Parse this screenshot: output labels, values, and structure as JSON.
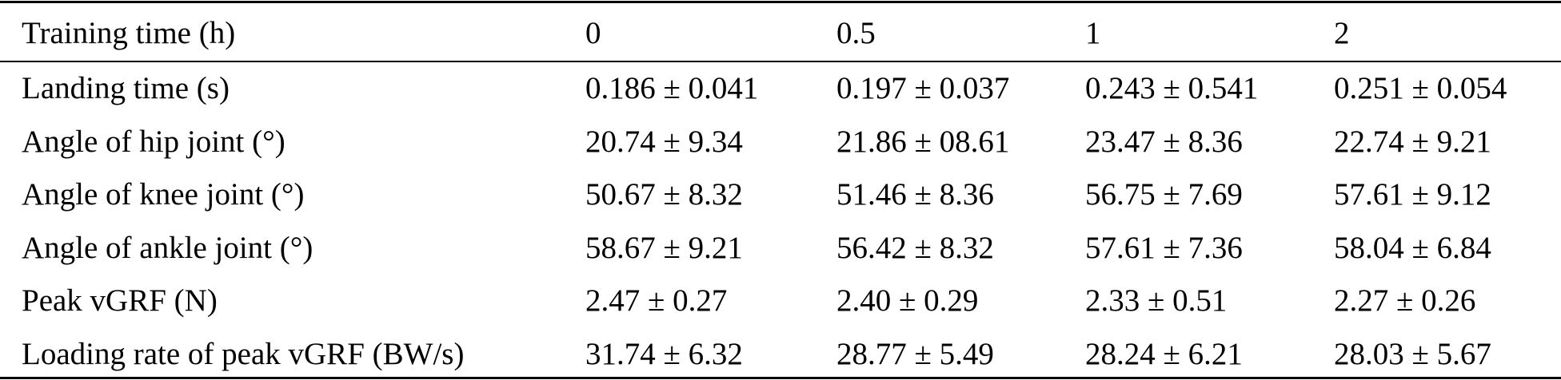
{
  "table": {
    "header": [
      "Training time (h)",
      "0",
      "0.5",
      "1",
      "2"
    ],
    "rows": [
      [
        "Landing time (s)",
        "0.186 ± 0.041",
        "0.197 ± 0.037",
        "0.243 ± 0.541",
        "0.251 ± 0.054"
      ],
      [
        "Angle of hip joint (°)",
        "20.74 ± 9.34",
        "21.86 ± 08.61",
        "23.47 ± 8.36",
        "22.74 ± 9.21"
      ],
      [
        "Angle of knee joint (°)",
        "50.67 ± 8.32",
        "51.46 ± 8.36",
        "56.75 ± 7.69",
        "57.61 ± 9.12"
      ],
      [
        "Angle of ankle joint (°)",
        "58.67 ± 9.21",
        "56.42 ± 8.32",
        "57.61 ± 7.36",
        "58.04 ± 6.84"
      ],
      [
        "Peak vGRF (N)",
        "2.47 ± 0.27",
        "2.40 ± 0.29",
        "2.33 ± 0.51",
        "2.27 ± 0.26"
      ],
      [
        "Loading rate of peak vGRF (BW/s)",
        "31.74 ± 6.32",
        "28.77 ± 5.49",
        "28.24 ± 6.21",
        "28.03 ± 5.67"
      ]
    ]
  }
}
